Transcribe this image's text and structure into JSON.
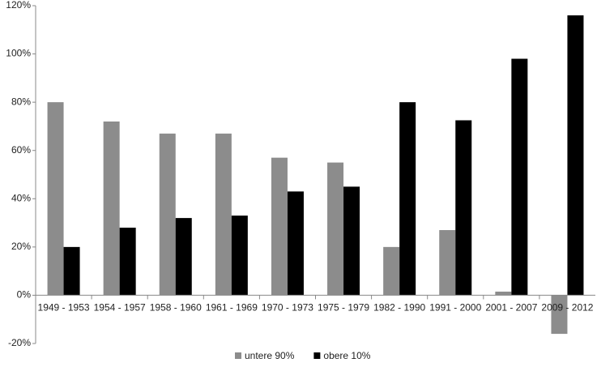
{
  "chart_data": {
    "type": "bar",
    "categories": [
      "1949 - 1953",
      "1954 - 1957",
      "1958 - 1960",
      "1961 - 1969",
      "1970 - 1973",
      "1975 - 1979",
      "1982 - 1990",
      "1991 - 2000",
      "2001 - 2007",
      "2009 - 2012"
    ],
    "series": [
      {
        "name": "untere 90%",
        "color": "#8c8c8c",
        "values": [
          80,
          72,
          67,
          67,
          57,
          55,
          20,
          27,
          1.5,
          -16
        ]
      },
      {
        "name": "obere 10%",
        "color": "#000000",
        "values": [
          20,
          28,
          32,
          33,
          43,
          45,
          80,
          72.5,
          98,
          116
        ]
      }
    ],
    "ylim": [
      -20,
      120
    ],
    "yticks": [
      {
        "value": -20,
        "label": "-20%"
      },
      {
        "value": 0,
        "label": "0%"
      },
      {
        "value": 20,
        "label": "20%"
      },
      {
        "value": 40,
        "label": "40%"
      },
      {
        "value": 60,
        "label": "60%"
      },
      {
        "value": 80,
        "label": "80%"
      },
      {
        "value": 100,
        "label": "100%"
      },
      {
        "value": 120,
        "label": "120%"
      }
    ],
    "grid": false,
    "legend": "bottom"
  }
}
